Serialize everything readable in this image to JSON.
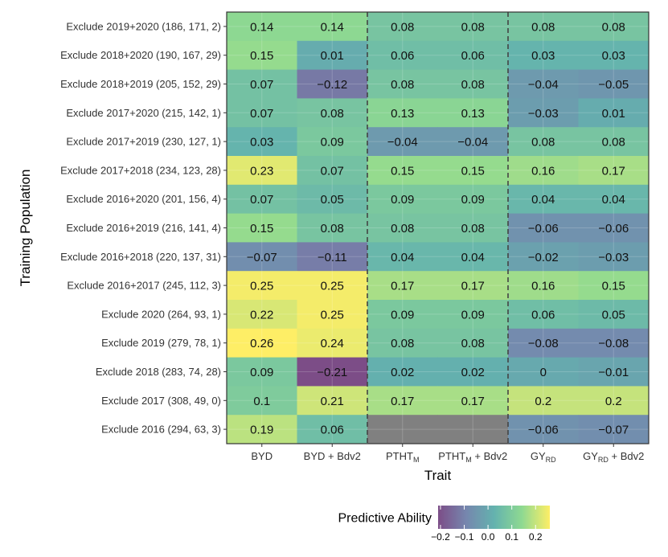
{
  "chart_data": {
    "type": "heatmap",
    "xlabel": "Trait",
    "ylabel": "Training Population",
    "x_categories": [
      {
        "main": "BYD",
        "sub": "",
        "suffix": ""
      },
      {
        "main": "BYD + Bdv2",
        "sub": "",
        "suffix": ""
      },
      {
        "main": "PTHT",
        "sub": "M",
        "suffix": ""
      },
      {
        "main": "PTHT",
        "sub": "M",
        "suffix": " + Bdv2"
      },
      {
        "main": "GY",
        "sub": "RD",
        "suffix": ""
      },
      {
        "main": "GY",
        "sub": "RD",
        "suffix": " + Bdv2"
      }
    ],
    "y_categories": [
      "Exclude 2019+2020 (186, 171, 2)",
      "Exclude 2018+2020 (190, 167, 29)",
      "Exclude 2018+2019 (205, 152, 29)",
      "Exclude 2017+2020 (215, 142, 1)",
      "Exclude 2017+2019 (230, 127, 1)",
      "Exclude 2017+2018 (234, 123, 28)",
      "Exclude 2016+2020 (201, 156, 4)",
      "Exclude 2016+2019 (216, 141, 4)",
      "Exclude 2016+2018 (220, 137, 31)",
      "Exclude 2016+2017 (245, 112, 3)",
      "Exclude 2020 (264, 93, 1)",
      "Exclude 2019 (279, 78, 1)",
      "Exclude 2018 (283, 74, 28)",
      "Exclude 2017 (308, 49, 0)",
      "Exclude 2016 (294, 63, 3)"
    ],
    "values": [
      [
        0.14,
        0.14,
        0.08,
        0.08,
        0.08,
        0.08
      ],
      [
        0.15,
        0.01,
        0.06,
        0.06,
        0.03,
        0.03
      ],
      [
        0.07,
        -0.12,
        0.08,
        0.08,
        -0.04,
        -0.05
      ],
      [
        0.07,
        0.08,
        0.13,
        0.13,
        -0.03,
        0.01
      ],
      [
        0.03,
        0.09,
        -0.04,
        -0.04,
        0.08,
        0.08
      ],
      [
        0.23,
        0.07,
        0.15,
        0.15,
        0.16,
        0.17
      ],
      [
        0.07,
        0.05,
        0.09,
        0.09,
        0.04,
        0.04
      ],
      [
        0.15,
        0.08,
        0.08,
        0.08,
        -0.06,
        -0.06
      ],
      [
        -0.07,
        -0.11,
        0.04,
        0.04,
        -0.02,
        -0.03
      ],
      [
        0.25,
        0.25,
        0.17,
        0.17,
        0.16,
        0.15
      ],
      [
        0.22,
        0.25,
        0.09,
        0.09,
        0.06,
        0.05
      ],
      [
        0.26,
        0.24,
        0.08,
        0.08,
        -0.08,
        -0.08
      ],
      [
        0.09,
        -0.21,
        0.02,
        0.02,
        0,
        -0.01
      ],
      [
        0.1,
        0.21,
        0.17,
        0.17,
        0.2,
        0.2
      ],
      [
        0.19,
        0.06,
        null,
        null,
        -0.06,
        -0.07
      ]
    ],
    "na_color": "#808080",
    "color_range": [
      -0.21,
      0.26
    ],
    "colormap": "viridis",
    "dashed_separators_after_columns": [
      2,
      4
    ],
    "legend": {
      "title": "Predictive Ability",
      "position": "bottom",
      "ticks": [
        -0.2,
        -0.1,
        0.0,
        0.1,
        0.2
      ],
      "tick_labels": [
        "−0.2",
        "−0.1",
        "0.0",
        "0.1",
        "0.2"
      ]
    }
  }
}
